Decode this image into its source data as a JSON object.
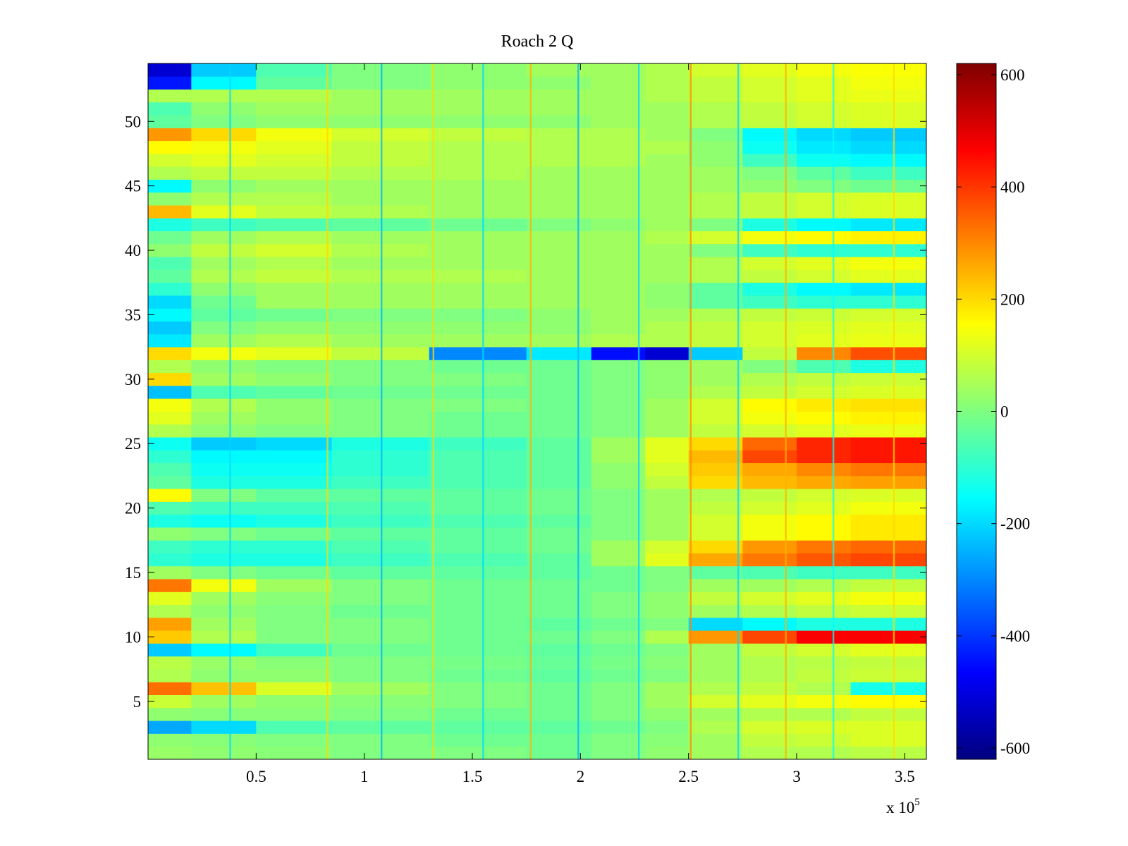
{
  "chart_data": {
    "type": "heatmap",
    "title": "Roach 2 Q",
    "xlabel": "",
    "ylabel": "",
    "x_multiplier_label": "x 10",
    "x_multiplier_exponent": "5",
    "xlim": [
      0,
      3.6
    ],
    "ylim": [
      0.5,
      54.5
    ],
    "x_ticks": [
      {
        "value": 0.5,
        "label": "0.5"
      },
      {
        "value": 1.0,
        "label": "1"
      },
      {
        "value": 1.5,
        "label": "1.5"
      },
      {
        "value": 2.0,
        "label": "2"
      },
      {
        "value": 2.5,
        "label": "2.5"
      },
      {
        "value": 3.0,
        "label": "3"
      },
      {
        "value": 3.5,
        "label": "3.5"
      }
    ],
    "y_ticks": [
      {
        "value": 5,
        "label": "5"
      },
      {
        "value": 10,
        "label": "10"
      },
      {
        "value": 15,
        "label": "15"
      },
      {
        "value": 20,
        "label": "20"
      },
      {
        "value": 25,
        "label": "25"
      },
      {
        "value": 30,
        "label": "30"
      },
      {
        "value": 35,
        "label": "35"
      },
      {
        "value": 40,
        "label": "40"
      },
      {
        "value": 45,
        "label": "45"
      },
      {
        "value": 50,
        "label": "50"
      }
    ],
    "colorbar": {
      "colormap": "jet",
      "clim": [
        -620,
        620
      ],
      "ticks": [
        {
          "value": 600,
          "label": "600"
        },
        {
          "value": 400,
          "label": "400"
        },
        {
          "value": 200,
          "label": "200"
        },
        {
          "value": 0,
          "label": "0"
        },
        {
          "value": -200,
          "label": "-200"
        },
        {
          "value": -400,
          "label": "-400"
        },
        {
          "value": -600,
          "label": "-600"
        }
      ]
    },
    "grid": false,
    "n_channels": 54,
    "x_segments": [
      0,
      0.2,
      0.5,
      0.85,
      1.3,
      1.75,
      2.05,
      2.3,
      2.5,
      2.75,
      3.0,
      3.25,
      3.6
    ],
    "rows": [
      {
        "channel": 1,
        "values": [
          30,
          20,
          10,
          0,
          0,
          -20,
          0,
          20,
          40,
          60,
          60,
          70
        ]
      },
      {
        "channel": 2,
        "values": [
          20,
          10,
          0,
          0,
          -20,
          -20,
          0,
          10,
          40,
          80,
          90,
          110
        ]
      },
      {
        "channel": 3,
        "values": [
          -260,
          -200,
          -60,
          -40,
          -40,
          -40,
          -20,
          0,
          60,
          100,
          110,
          110
        ]
      },
      {
        "channel": 4,
        "values": [
          20,
          10,
          10,
          0,
          -20,
          -20,
          0,
          20,
          40,
          60,
          60,
          80
        ]
      },
      {
        "channel": 5,
        "values": [
          90,
          40,
          20,
          10,
          0,
          -20,
          0,
          40,
          100,
          120,
          140,
          160
        ]
      },
      {
        "channel": 6,
        "values": [
          330,
          230,
          110,
          40,
          0,
          -20,
          0,
          40,
          60,
          80,
          60,
          -130
        ]
      },
      {
        "channel": 7,
        "values": [
          60,
          20,
          20,
          0,
          -20,
          -40,
          -20,
          0,
          40,
          60,
          80,
          90
        ]
      },
      {
        "channel": 8,
        "values": [
          70,
          30,
          10,
          0,
          -10,
          -30,
          -10,
          10,
          40,
          60,
          70,
          80
        ]
      },
      {
        "channel": 9,
        "values": [
          -220,
          -160,
          -80,
          -20,
          -20,
          -40,
          -20,
          0,
          40,
          80,
          100,
          120
        ]
      },
      {
        "channel": 10,
        "values": [
          220,
          60,
          0,
          0,
          -20,
          -20,
          0,
          60,
          280,
          380,
          470,
          470
        ]
      },
      {
        "channel": 11,
        "values": [
          270,
          40,
          0,
          0,
          -20,
          -40,
          -20,
          0,
          -200,
          -160,
          -120,
          -120
        ]
      },
      {
        "channel": 12,
        "values": [
          60,
          20,
          0,
          -20,
          -20,
          -20,
          0,
          20,
          40,
          60,
          80,
          90
        ]
      },
      {
        "channel": 13,
        "values": [
          120,
          40,
          10,
          0,
          -20,
          -20,
          0,
          20,
          80,
          100,
          120,
          140
        ]
      },
      {
        "channel": 14,
        "values": [
          320,
          140,
          40,
          0,
          -20,
          -20,
          -20,
          0,
          40,
          40,
          60,
          80
        ]
      },
      {
        "channel": 15,
        "values": [
          40,
          0,
          -20,
          -40,
          -40,
          -40,
          -20,
          0,
          -40,
          -60,
          -80,
          -80
        ]
      },
      {
        "channel": 16,
        "values": [
          -100,
          -120,
          -120,
          -80,
          -60,
          -40,
          40,
          120,
          260,
          320,
          360,
          380
        ]
      },
      {
        "channel": 17,
        "values": [
          -80,
          -100,
          -100,
          -60,
          -40,
          -20,
          40,
          100,
          200,
          280,
          320,
          340
        ]
      },
      {
        "channel": 18,
        "values": [
          20,
          0,
          -20,
          -40,
          -40,
          -20,
          0,
          40,
          100,
          140,
          160,
          180
        ]
      },
      {
        "channel": 19,
        "values": [
          -120,
          -140,
          -120,
          -80,
          -60,
          -40,
          0,
          40,
          100,
          140,
          160,
          180
        ]
      },
      {
        "channel": 20,
        "values": [
          -60,
          -80,
          -80,
          -60,
          -40,
          -20,
          0,
          40,
          80,
          100,
          120,
          140
        ]
      },
      {
        "channel": 21,
        "values": [
          160,
          0,
          -40,
          -40,
          -40,
          -20,
          0,
          40,
          60,
          80,
          100,
          110
        ]
      },
      {
        "channel": 22,
        "values": [
          -40,
          -120,
          -120,
          -80,
          -60,
          -40,
          20,
          80,
          200,
          240,
          260,
          270
        ]
      },
      {
        "channel": 23,
        "values": [
          -60,
          -140,
          -140,
          -100,
          -60,
          -40,
          20,
          100,
          220,
          260,
          300,
          320
        ]
      },
      {
        "channel": 24,
        "values": [
          -100,
          -160,
          -160,
          -100,
          -60,
          -40,
          40,
          120,
          240,
          380,
          420,
          440
        ]
      },
      {
        "channel": 25,
        "values": [
          -140,
          -220,
          -200,
          -120,
          -80,
          -40,
          40,
          120,
          200,
          340,
          420,
          440
        ]
      },
      {
        "channel": 26,
        "values": [
          60,
          20,
          0,
          0,
          -20,
          -20,
          0,
          40,
          80,
          100,
          120,
          130
        ]
      },
      {
        "channel": 27,
        "values": [
          120,
          40,
          20,
          0,
          -20,
          -20,
          0,
          40,
          100,
          140,
          160,
          170
        ]
      },
      {
        "channel": 28,
        "values": [
          140,
          60,
          20,
          0,
          0,
          -20,
          0,
          40,
          100,
          160,
          180,
          190
        ]
      },
      {
        "channel": 29,
        "values": [
          -230,
          -60,
          -40,
          -20,
          -20,
          -20,
          0,
          20,
          60,
          80,
          100,
          110
        ]
      },
      {
        "channel": 30,
        "values": [
          200,
          40,
          20,
          0,
          0,
          -20,
          0,
          20,
          40,
          60,
          80,
          90
        ]
      },
      {
        "channel": 31,
        "values": [
          60,
          20,
          0,
          0,
          -20,
          -20,
          0,
          20,
          40,
          0,
          -60,
          -120
        ]
      },
      {
        "channel": 32,
        "values": [
          200,
          140,
          120,
          80,
          -300,
          -180,
          -450,
          -520,
          -220,
          80,
          300,
          370
        ]
      },
      {
        "channel": 33,
        "values": [
          -180,
          40,
          60,
          40,
          40,
          40,
          60,
          60,
          80,
          100,
          120,
          130
        ]
      },
      {
        "channel": 34,
        "values": [
          -220,
          0,
          20,
          20,
          20,
          20,
          40,
          60,
          80,
          100,
          110,
          120
        ]
      },
      {
        "channel": 35,
        "values": [
          -160,
          -40,
          -20,
          0,
          0,
          20,
          40,
          40,
          60,
          80,
          90,
          100
        ]
      },
      {
        "channel": 36,
        "values": [
          -200,
          -20,
          40,
          40,
          40,
          40,
          40,
          20,
          -40,
          -80,
          -100,
          -100
        ]
      },
      {
        "channel": 37,
        "values": [
          -100,
          20,
          40,
          40,
          40,
          40,
          40,
          20,
          -40,
          -120,
          -160,
          -180
        ]
      },
      {
        "channel": 38,
        "values": [
          -40,
          60,
          80,
          60,
          60,
          40,
          40,
          40,
          60,
          80,
          100,
          120
        ]
      },
      {
        "channel": 39,
        "values": [
          -60,
          40,
          60,
          40,
          40,
          40,
          40,
          40,
          60,
          100,
          120,
          140
        ]
      },
      {
        "channel": 40,
        "values": [
          20,
          80,
          100,
          60,
          40,
          40,
          40,
          40,
          0,
          -80,
          -100,
          -100
        ]
      },
      {
        "channel": 41,
        "values": [
          -20,
          40,
          60,
          40,
          40,
          40,
          40,
          60,
          100,
          140,
          160,
          170
        ]
      },
      {
        "channel": 42,
        "values": [
          -120,
          -80,
          -60,
          -40,
          -20,
          0,
          20,
          40,
          0,
          -120,
          -160,
          -180
        ]
      },
      {
        "channel": 43,
        "values": [
          240,
          120,
          80,
          60,
          40,
          40,
          40,
          40,
          60,
          80,
          100,
          110
        ]
      },
      {
        "channel": 44,
        "values": [
          20,
          60,
          60,
          40,
          40,
          40,
          40,
          40,
          60,
          80,
          100,
          110
        ]
      },
      {
        "channel": 45,
        "values": [
          -160,
          20,
          40,
          40,
          40,
          40,
          40,
          40,
          40,
          20,
          0,
          -20
        ]
      },
      {
        "channel": 46,
        "values": [
          60,
          80,
          80,
          60,
          60,
          40,
          40,
          40,
          40,
          0,
          -40,
          -80
        ]
      },
      {
        "channel": 47,
        "values": [
          100,
          120,
          100,
          80,
          60,
          60,
          60,
          40,
          20,
          -80,
          -140,
          -160
        ]
      },
      {
        "channel": 48,
        "values": [
          160,
          140,
          120,
          80,
          60,
          60,
          60,
          60,
          20,
          -140,
          -180,
          -200
        ]
      },
      {
        "channel": 49,
        "values": [
          280,
          200,
          140,
          100,
          80,
          60,
          60,
          40,
          0,
          -160,
          -200,
          -220
        ]
      },
      {
        "channel": 50,
        "values": [
          -40,
          0,
          20,
          20,
          20,
          20,
          40,
          40,
          60,
          80,
          100,
          110
        ]
      },
      {
        "channel": 51,
        "values": [
          -60,
          20,
          40,
          40,
          40,
          40,
          40,
          40,
          60,
          80,
          100,
          110
        ]
      },
      {
        "channel": 52,
        "values": [
          60,
          60,
          60,
          40,
          40,
          40,
          40,
          60,
          80,
          100,
          120,
          130
        ]
      },
      {
        "channel": 53,
        "values": [
          -440,
          -160,
          -40,
          0,
          20,
          20,
          40,
          60,
          80,
          100,
          120,
          140
        ]
      },
      {
        "channel": 54,
        "values": [
          -520,
          -220,
          -60,
          0,
          20,
          40,
          40,
          60,
          100,
          120,
          140,
          150
        ]
      }
    ],
    "vertical_streaks": [
      {
        "x": 0.38,
        "value": -200
      },
      {
        "x": 0.83,
        "value": 200
      },
      {
        "x": 1.08,
        "value": -250
      },
      {
        "x": 1.32,
        "value": 200
      },
      {
        "x": 1.55,
        "value": -200
      },
      {
        "x": 1.77,
        "value": 250
      },
      {
        "x": 1.99,
        "value": -250
      },
      {
        "x": 2.27,
        "value": -200
      },
      {
        "x": 2.51,
        "value": 300
      },
      {
        "x": 2.73,
        "value": -200
      },
      {
        "x": 2.95,
        "value": 250
      },
      {
        "x": 3.17,
        "value": -150
      },
      {
        "x": 3.45,
        "value": 200
      }
    ]
  }
}
